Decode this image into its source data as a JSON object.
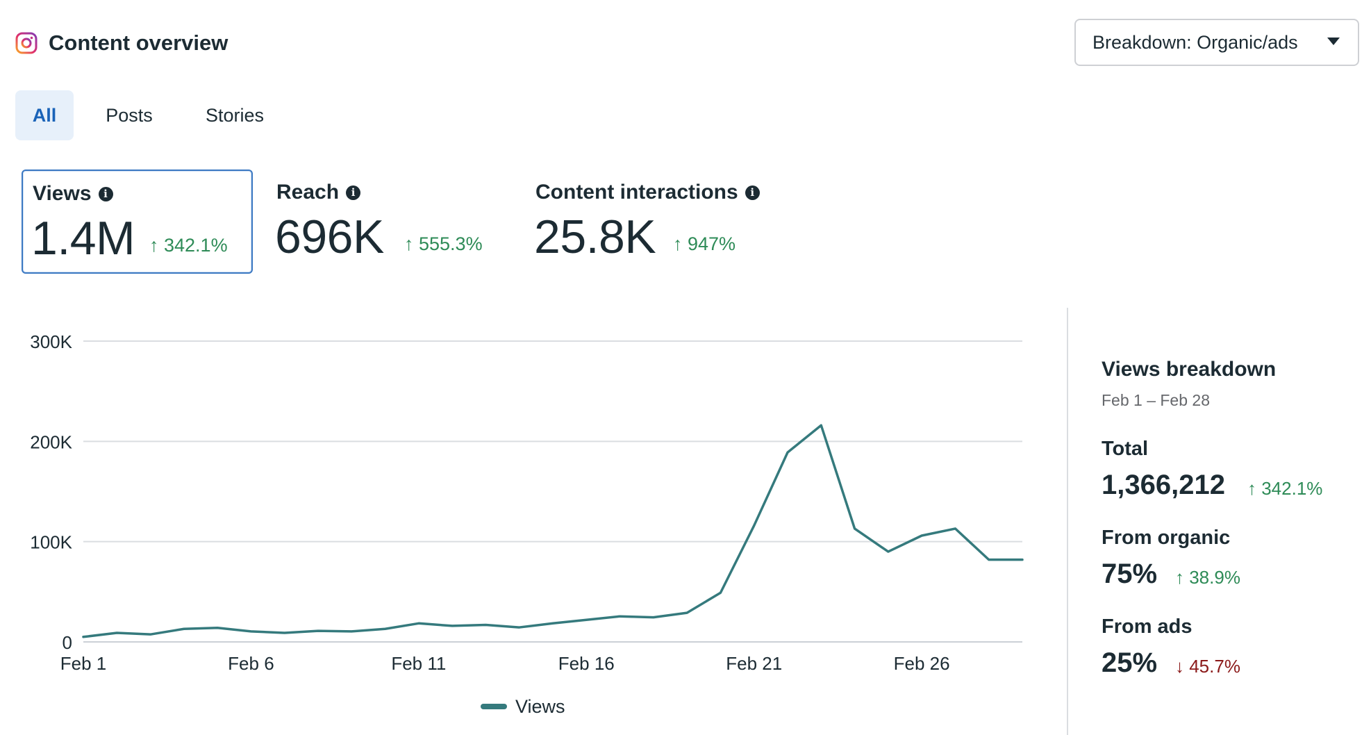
{
  "header": {
    "title": "Content overview",
    "icon": "instagram-icon"
  },
  "breakdown_select": {
    "label": "Breakdown: Organic/ads"
  },
  "tabs": [
    {
      "label": "All",
      "active": true
    },
    {
      "label": "Posts",
      "active": false
    },
    {
      "label": "Stories",
      "active": false
    }
  ],
  "metrics": [
    {
      "label": "Views",
      "value": "1.4M",
      "delta": "↑ 342.1%",
      "selected": true
    },
    {
      "label": "Reach",
      "value": "696K",
      "delta": "↑ 555.3%",
      "selected": false
    },
    {
      "label": "Content interactions",
      "value": "25.8K",
      "delta": "↑ 947%",
      "selected": false
    }
  ],
  "chart_data": {
    "type": "line",
    "title": "",
    "xlabel": "",
    "ylabel": "",
    "ylim": [
      0,
      300000
    ],
    "yticks": [
      0,
      100000,
      200000,
      300000
    ],
    "ytick_labels": [
      "0",
      "100K",
      "200K",
      "300K"
    ],
    "x": [
      1,
      2,
      3,
      4,
      5,
      6,
      7,
      8,
      9,
      10,
      11,
      12,
      13,
      14,
      15,
      16,
      17,
      18,
      19,
      20,
      21,
      22,
      23,
      24,
      25,
      26,
      27,
      28,
      29
    ],
    "xticks": [
      1,
      6,
      11,
      16,
      21,
      26
    ],
    "xtick_labels": [
      "Feb 1",
      "Feb 6",
      "Feb 11",
      "Feb 16",
      "Feb 21",
      "Feb 26"
    ],
    "series": [
      {
        "name": "Views",
        "color": "#357a7d",
        "values": [
          5000,
          9000,
          7500,
          13000,
          14000,
          10500,
          9000,
          11000,
          10500,
          13000,
          18500,
          16000,
          17000,
          14500,
          18500,
          22000,
          25500,
          24500,
          29000,
          49000,
          116000,
          189000,
          216000,
          113000,
          90000,
          106000,
          113000,
          82000,
          82000
        ]
      }
    ],
    "legend": {
      "position": "bottom-center",
      "label": "Views"
    },
    "grid": true
  },
  "views_breakdown": {
    "title": "Views breakdown",
    "date_range": "Feb 1 – Feb 28",
    "total": {
      "label": "Total",
      "value": "1,366,212",
      "delta": "↑ 342.1%",
      "direction": "up"
    },
    "organic": {
      "label": "From organic",
      "value": "75%",
      "delta": "↑ 38.9%",
      "direction": "up"
    },
    "ads": {
      "label": "From ads",
      "value": "25%",
      "delta": "↓ 45.7%",
      "direction": "down"
    }
  }
}
